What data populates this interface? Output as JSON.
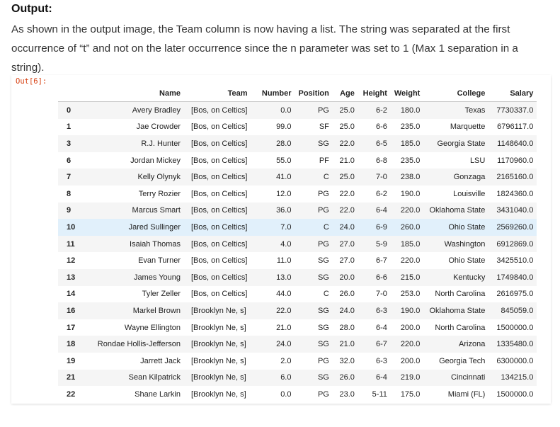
{
  "heading": "Output:",
  "paragraph": "As shown in the output image, the Team column is now having a list. The string was separated at the first occurrence of “t” and not on the later occurrence since the n parameter was set to 1 (Max 1 separation in a string).",
  "prompt": "Out[6]:",
  "table": {
    "columns": [
      "Name",
      "Team",
      "Number",
      "Position",
      "Age",
      "Height",
      "Weight",
      "College",
      "Salary"
    ],
    "rows": [
      {
        "idx": "0",
        "cells": [
          "Avery Bradley",
          "[Bos, on Celtics]",
          "0.0",
          "PG",
          "25.0",
          "6-2",
          "180.0",
          "Texas",
          "7730337.0"
        ]
      },
      {
        "idx": "1",
        "cells": [
          "Jae Crowder",
          "[Bos, on Celtics]",
          "99.0",
          "SF",
          "25.0",
          "6-6",
          "235.0",
          "Marquette",
          "6796117.0"
        ]
      },
      {
        "idx": "3",
        "cells": [
          "R.J. Hunter",
          "[Bos, on Celtics]",
          "28.0",
          "SG",
          "22.0",
          "6-5",
          "185.0",
          "Georgia State",
          "1148640.0"
        ]
      },
      {
        "idx": "6",
        "cells": [
          "Jordan Mickey",
          "[Bos, on Celtics]",
          "55.0",
          "PF",
          "21.0",
          "6-8",
          "235.0",
          "LSU",
          "1170960.0"
        ]
      },
      {
        "idx": "7",
        "cells": [
          "Kelly Olynyk",
          "[Bos, on Celtics]",
          "41.0",
          "C",
          "25.0",
          "7-0",
          "238.0",
          "Gonzaga",
          "2165160.0"
        ]
      },
      {
        "idx": "8",
        "cells": [
          "Terry Rozier",
          "[Bos, on Celtics]",
          "12.0",
          "PG",
          "22.0",
          "6-2",
          "190.0",
          "Louisville",
          "1824360.0"
        ]
      },
      {
        "idx": "9",
        "cells": [
          "Marcus Smart",
          "[Bos, on Celtics]",
          "36.0",
          "PG",
          "22.0",
          "6-4",
          "220.0",
          "Oklahoma State",
          "3431040.0"
        ]
      },
      {
        "idx": "10",
        "cells": [
          "Jared Sullinger",
          "[Bos, on Celtics]",
          "7.0",
          "C",
          "24.0",
          "6-9",
          "260.0",
          "Ohio State",
          "2569260.0"
        ]
      },
      {
        "idx": "11",
        "cells": [
          "Isaiah Thomas",
          "[Bos, on Celtics]",
          "4.0",
          "PG",
          "27.0",
          "5-9",
          "185.0",
          "Washington",
          "6912869.0"
        ]
      },
      {
        "idx": "12",
        "cells": [
          "Evan Turner",
          "[Bos, on Celtics]",
          "11.0",
          "SG",
          "27.0",
          "6-7",
          "220.0",
          "Ohio State",
          "3425510.0"
        ]
      },
      {
        "idx": "13",
        "cells": [
          "James Young",
          "[Bos, on Celtics]",
          "13.0",
          "SG",
          "20.0",
          "6-6",
          "215.0",
          "Kentucky",
          "1749840.0"
        ]
      },
      {
        "idx": "14",
        "cells": [
          "Tyler Zeller",
          "[Bos, on Celtics]",
          "44.0",
          "C",
          "26.0",
          "7-0",
          "253.0",
          "North Carolina",
          "2616975.0"
        ]
      },
      {
        "idx": "16",
        "cells": [
          "Markel Brown",
          "[Brooklyn Ne, s]",
          "22.0",
          "SG",
          "24.0",
          "6-3",
          "190.0",
          "Oklahoma State",
          "845059.0"
        ]
      },
      {
        "idx": "17",
        "cells": [
          "Wayne Ellington",
          "[Brooklyn Ne, s]",
          "21.0",
          "SG",
          "28.0",
          "6-4",
          "200.0",
          "North Carolina",
          "1500000.0"
        ]
      },
      {
        "idx": "18",
        "cells": [
          "Rondae Hollis-Jefferson",
          "[Brooklyn Ne, s]",
          "24.0",
          "SG",
          "21.0",
          "6-7",
          "220.0",
          "Arizona",
          "1335480.0"
        ]
      },
      {
        "idx": "19",
        "cells": [
          "Jarrett Jack",
          "[Brooklyn Ne, s]",
          "2.0",
          "PG",
          "32.0",
          "6-3",
          "200.0",
          "Georgia Tech",
          "6300000.0"
        ]
      },
      {
        "idx": "21",
        "cells": [
          "Sean Kilpatrick",
          "[Brooklyn Ne, s]",
          "6.0",
          "SG",
          "26.0",
          "6-4",
          "219.0",
          "Cincinnati",
          "134215.0"
        ]
      },
      {
        "idx": "22",
        "cells": [
          "Shane Larkin",
          "[Brooklyn Ne, s]",
          "0.0",
          "PG",
          "23.0",
          "5-11",
          "175.0",
          "Miami (FL)",
          "1500000.0"
        ]
      }
    ],
    "highlighted_row": 7,
    "colors": {
      "highlight": "#e1f0fb",
      "stripe": "#f5f5f5",
      "prompt": "#d84315"
    }
  }
}
